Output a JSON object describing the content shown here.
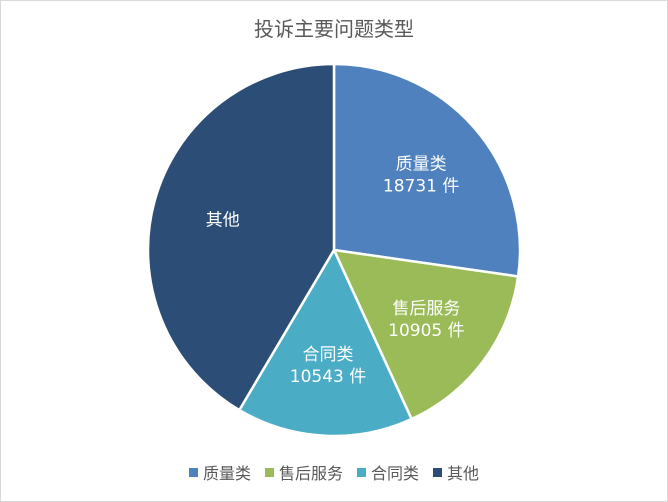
{
  "chart_data": {
    "type": "pie",
    "title": "投诉主要问题类型",
    "unit": "件",
    "start_angle_deg": 0,
    "direction": "clockwise",
    "legend_position": "bottom",
    "slices": [
      {
        "name": "质量类",
        "value": 18731,
        "value_label": "18731 件",
        "color": "#4e81bd",
        "label_shows_value": true
      },
      {
        "name": "售后服务",
        "value": 10905,
        "value_label": "10905 件",
        "color": "#9bbb59",
        "label_shows_value": true
      },
      {
        "name": "合同类",
        "value": 10543,
        "value_label": "10543 件",
        "color": "#4bacc6",
        "label_shows_value": true
      },
      {
        "name": "其他",
        "value": 28500,
        "value_label": "",
        "color": "#2c4d75",
        "label_shows_value": false
      }
    ]
  }
}
